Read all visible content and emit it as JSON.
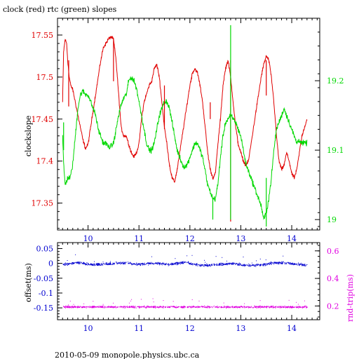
{
  "title": "clock (red) rtc (green) slopes",
  "footer": "2010-05-09  monopole.physics.ubc.ca",
  "chart_data": [
    {
      "type": "line",
      "title": "clock (red) rtc (green) slopes",
      "ylabel": "clockslope",
      "x_ticks": [
        "10",
        "11",
        "12",
        "13",
        "14"
      ],
      "xlim": [
        9.4,
        14.55
      ],
      "y_left_ticks": [
        "17.35",
        "17.4",
        "17.45",
        "17.5",
        "17.55"
      ],
      "ylim_left": [
        17.318,
        17.57
      ],
      "y_right_ticks": [
        "19",
        "19.1",
        "19.2"
      ],
      "ylim_right": [
        18.985,
        19.29
      ],
      "grid": false,
      "colors": {
        "left_axis": "#e00000",
        "right_axis": "#00d800",
        "bottom_axis": "#0000d0",
        "frame": "#000000"
      },
      "series": [
        {
          "name": "clock (red)",
          "axis": "left",
          "color": "#e00000",
          "x": [
            9.5,
            9.52,
            9.55,
            9.58,
            9.6,
            9.63,
            9.66,
            9.7,
            9.75,
            9.8,
            9.85,
            9.9,
            9.95,
            10.0,
            10.05,
            10.1,
            10.15,
            10.2,
            10.25,
            10.3,
            10.35,
            10.4,
            10.45,
            10.5,
            10.55,
            10.6,
            10.65,
            10.7,
            10.75,
            10.8,
            10.85,
            10.9,
            10.95,
            11.0,
            11.05,
            11.1,
            11.15,
            11.2,
            11.25,
            11.3,
            11.35,
            11.4,
            11.45,
            11.5,
            11.55,
            11.6,
            11.65,
            11.7,
            11.75,
            11.8,
            11.85,
            11.9,
            11.95,
            12.0,
            12.05,
            12.1,
            12.15,
            12.2,
            12.25,
            12.3,
            12.35,
            12.4,
            12.45,
            12.5,
            12.55,
            12.6,
            12.65,
            12.7,
            12.75,
            12.8,
            12.85,
            12.9,
            12.95,
            13.0,
            13.05,
            13.1,
            13.15,
            13.2,
            13.25,
            13.3,
            13.35,
            13.4,
            13.45,
            13.5,
            13.55,
            13.6,
            13.65,
            13.7,
            13.75,
            13.8,
            13.85,
            13.9,
            13.95,
            14.0,
            14.05,
            14.1,
            14.15,
            14.2,
            14.25,
            14.3
          ],
          "values": [
            17.47,
            17.53,
            17.545,
            17.54,
            17.52,
            17.5,
            17.49,
            17.485,
            17.47,
            17.455,
            17.44,
            17.425,
            17.415,
            17.42,
            17.44,
            17.46,
            17.48,
            17.5,
            17.52,
            17.535,
            17.54,
            17.545,
            17.548,
            17.545,
            17.52,
            17.48,
            17.44,
            17.43,
            17.43,
            17.42,
            17.41,
            17.405,
            17.41,
            17.42,
            17.45,
            17.47,
            17.48,
            17.49,
            17.495,
            17.51,
            17.515,
            17.5,
            17.47,
            17.44,
            17.42,
            17.395,
            17.38,
            17.375,
            17.39,
            17.41,
            17.43,
            17.45,
            17.47,
            17.49,
            17.505,
            17.51,
            17.505,
            17.49,
            17.47,
            17.44,
            17.41,
            17.39,
            17.38,
            17.385,
            17.42,
            17.45,
            17.49,
            17.51,
            17.52,
            17.5,
            17.47,
            17.44,
            17.42,
            17.41,
            17.4,
            17.395,
            17.4,
            17.42,
            17.44,
            17.46,
            17.48,
            17.5,
            17.515,
            17.525,
            17.52,
            17.5,
            17.47,
            17.43,
            17.4,
            17.39,
            17.395,
            17.41,
            17.4,
            17.385,
            17.38,
            17.39,
            17.41,
            17.43,
            17.44,
            17.45
          ]
        },
        {
          "name": "rtc (green)",
          "axis": "right",
          "color": "#00d800",
          "x": [
            9.5,
            9.52,
            9.55,
            9.6,
            9.65,
            9.7,
            9.75,
            9.8,
            9.85,
            9.9,
            9.95,
            10.0,
            10.05,
            10.1,
            10.15,
            10.2,
            10.25,
            10.3,
            10.35,
            10.4,
            10.45,
            10.5,
            10.55,
            10.6,
            10.65,
            10.7,
            10.75,
            10.8,
            10.85,
            10.9,
            10.95,
            11.0,
            11.05,
            11.1,
            11.15,
            11.2,
            11.25,
            11.3,
            11.35,
            11.4,
            11.45,
            11.5,
            11.55,
            11.6,
            11.65,
            11.7,
            11.75,
            11.8,
            11.85,
            11.9,
            11.95,
            12.0,
            12.05,
            12.1,
            12.15,
            12.2,
            12.25,
            12.3,
            12.35,
            12.4,
            12.45,
            12.5,
            12.55,
            12.6,
            12.65,
            12.7,
            12.75,
            12.8,
            12.85,
            12.9,
            12.95,
            13.0,
            13.05,
            13.1,
            13.15,
            13.2,
            13.25,
            13.3,
            13.35,
            13.4,
            13.45,
            13.5,
            13.55,
            13.6,
            13.65,
            13.7,
            13.75,
            13.8,
            13.85,
            13.9,
            13.95,
            14.0,
            14.05,
            14.1,
            14.15,
            14.2,
            14.25,
            14.3
          ],
          "values": [
            19.12,
            19.08,
            19.05,
            19.06,
            19.06,
            19.08,
            19.12,
            19.16,
            19.18,
            19.185,
            19.18,
            19.18,
            19.17,
            19.16,
            19.15,
            19.13,
            19.12,
            19.11,
            19.11,
            19.105,
            19.105,
            19.11,
            19.13,
            19.15,
            19.165,
            19.175,
            19.18,
            19.2,
            19.205,
            19.2,
            19.19,
            19.17,
            19.15,
            19.13,
            19.11,
            19.1,
            19.1,
            19.11,
            19.13,
            19.15,
            19.16,
            19.17,
            19.17,
            19.16,
            19.14,
            19.12,
            19.1,
            19.09,
            19.08,
            19.075,
            19.08,
            19.09,
            19.1,
            19.11,
            19.11,
            19.1,
            19.09,
            19.07,
            19.05,
            19.04,
            19.03,
            19.03,
            19.05,
            19.09,
            19.12,
            19.14,
            19.145,
            19.15,
            19.145,
            19.14,
            19.13,
            19.12,
            19.1,
            19.08,
            19.07,
            19.06,
            19.05,
            19.04,
            19.03,
            19.02,
            19.0,
            19.01,
            19.03,
            19.06,
            19.1,
            19.13,
            19.14,
            19.15,
            19.16,
            19.15,
            19.14,
            19.13,
            19.12,
            19.11,
            19.115,
            19.11,
            19.11,
            19.11
          ]
        }
      ],
      "spikes": [
        {
          "series": "clock (red)",
          "axis": "left",
          "x": 9.62,
          "from": 17.52,
          "to": 17.465
        },
        {
          "series": "clock (red)",
          "axis": "left",
          "x": 10.5,
          "from": 17.545,
          "to": 17.495
        },
        {
          "series": "clock (red)",
          "axis": "left",
          "x": 11.5,
          "from": 17.49,
          "to": 17.438
        },
        {
          "series": "clock (red)",
          "axis": "left",
          "x": 12.4,
          "from": 17.47,
          "to": 17.45
        },
        {
          "series": "clock (red)",
          "axis": "left",
          "x": 12.8,
          "from": 17.52,
          "to": 17.328
        },
        {
          "series": "clock (red)",
          "axis": "left",
          "x": 13.5,
          "from": 17.52,
          "to": 17.478
        },
        {
          "series": "rtc (green)",
          "axis": "right",
          "x": 12.8,
          "from": 19.28,
          "to": 19.0
        },
        {
          "series": "rtc (green)",
          "axis": "right",
          "x": 13.5,
          "from": 19.06,
          "to": 18.99
        },
        {
          "series": "rtc (green)",
          "axis": "right",
          "x": 12.45,
          "from": 19.03,
          "to": 19.0
        },
        {
          "series": "rtc (green)",
          "axis": "right",
          "x": 9.52,
          "from": 19.14,
          "to": 19.1
        }
      ]
    },
    {
      "type": "scatter",
      "ylabel_left": "offset(ms)",
      "ylabel_right": "rnd-trip(ms)",
      "x_ticks": [
        "10",
        "11",
        "12",
        "13",
        "14"
      ],
      "xlim": [
        9.4,
        14.55
      ],
      "y_left_ticks": [
        "0.05",
        "0",
        "-0.05",
        "-0.1",
        "-0.15"
      ],
      "ylim_left": [
        -0.19,
        0.07
      ],
      "y_right_ticks": [
        "0.2",
        "0.4",
        "0.6"
      ],
      "ylim_right": [
        0.1,
        0.66
      ],
      "grid": false,
      "colors": {
        "left_axis": "#0000d0",
        "right_axis": "#e000e0",
        "bottom_axis": "#0000d0",
        "frame": "#000000"
      },
      "series": [
        {
          "name": "offset",
          "axis": "left",
          "color": "#0000d0",
          "x_range": [
            9.5,
            14.3
          ],
          "trend_x": [
            9.5,
            9.8,
            10.1,
            10.4,
            10.7,
            11.0,
            11.3,
            11.6,
            11.9,
            12.2,
            12.5,
            12.8,
            13.1,
            13.4,
            13.7,
            14.0,
            14.3
          ],
          "trend_y": [
            -0.002,
            0.004,
            -0.003,
            -0.001,
            0.003,
            -0.002,
            0.002,
            -0.003,
            0.005,
            -0.006,
            -0.004,
            0.001,
            -0.006,
            -0.004,
            0.004,
            0.0,
            -0.005
          ],
          "spread": 0.006
        },
        {
          "name": "rnd-trip",
          "axis": "right",
          "color": "#e000e0",
          "x_range": [
            9.5,
            14.3
          ],
          "trend_x": [
            9.5,
            14.3
          ],
          "trend_y": [
            0.195,
            0.195
          ],
          "spread": 0.01
        }
      ]
    }
  ]
}
